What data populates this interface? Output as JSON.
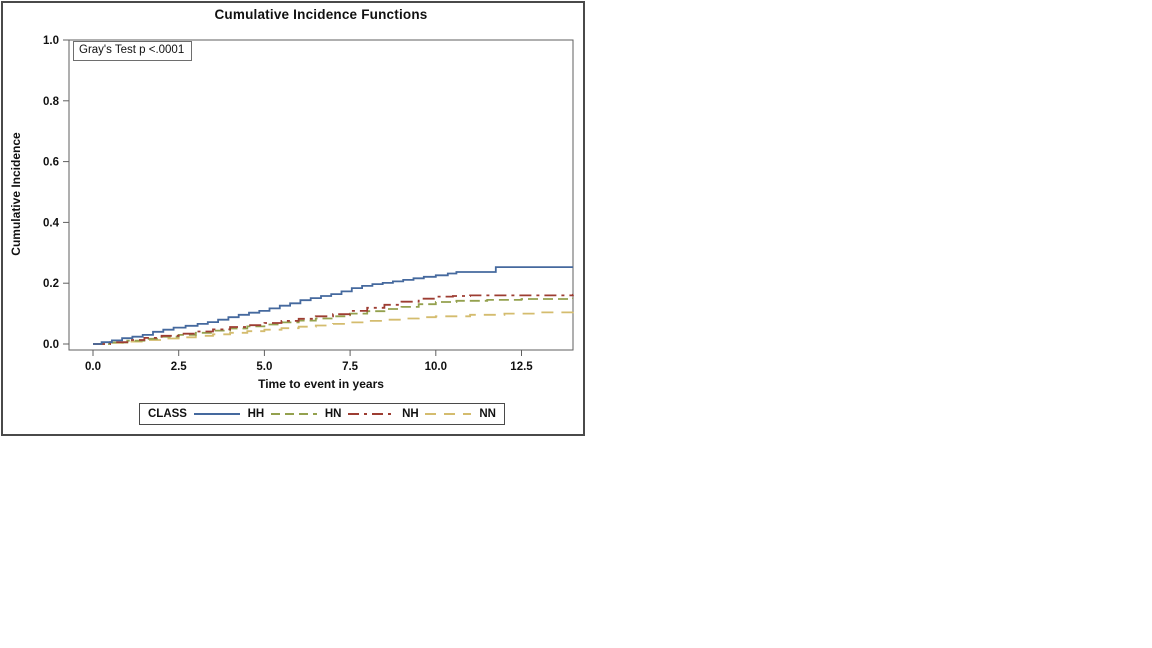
{
  "chart_data": {
    "type": "line",
    "step": true,
    "title": "Cumulative Incidence Functions",
    "xlabel": "Time to event in years",
    "ylabel": "Cumulative Incidence",
    "annotation": "Gray's Test p <.0001",
    "legend_title": "CLASS",
    "legend_position": "bottom",
    "grid": false,
    "xlim": [
      0,
      14
    ],
    "ylim": [
      0,
      1.0
    ],
    "xticks": [
      0.0,
      2.5,
      5.0,
      7.5,
      10.0,
      12.5
    ],
    "yticks": [
      0.0,
      0.2,
      0.4,
      0.6,
      0.8,
      1.0
    ],
    "frame_color": "#5f5f5f",
    "series": [
      {
        "name": "HH",
        "color": "#45699E",
        "dash": "",
        "legend_dash": "",
        "points": [
          [
            0,
            0
          ],
          [
            0.25,
            0.006
          ],
          [
            0.55,
            0.012
          ],
          [
            0.85,
            0.019
          ],
          [
            1.15,
            0.024
          ],
          [
            1.45,
            0.03
          ],
          [
            1.75,
            0.04
          ],
          [
            2.05,
            0.047
          ],
          [
            2.35,
            0.054
          ],
          [
            2.7,
            0.06
          ],
          [
            3.05,
            0.066
          ],
          [
            3.35,
            0.072
          ],
          [
            3.65,
            0.08
          ],
          [
            3.95,
            0.088
          ],
          [
            4.25,
            0.096
          ],
          [
            4.55,
            0.103
          ],
          [
            4.85,
            0.109
          ],
          [
            5.15,
            0.117
          ],
          [
            5.45,
            0.126
          ],
          [
            5.75,
            0.134
          ],
          [
            6.05,
            0.144
          ],
          [
            6.35,
            0.151
          ],
          [
            6.65,
            0.158
          ],
          [
            6.95,
            0.164
          ],
          [
            7.25,
            0.173
          ],
          [
            7.55,
            0.184
          ],
          [
            7.85,
            0.191
          ],
          [
            8.15,
            0.197
          ],
          [
            8.45,
            0.201
          ],
          [
            8.75,
            0.206
          ],
          [
            9.05,
            0.211
          ],
          [
            9.35,
            0.216
          ],
          [
            9.65,
            0.221
          ],
          [
            10.0,
            0.226
          ],
          [
            10.35,
            0.232
          ],
          [
            10.6,
            0.237
          ],
          [
            11.75,
            0.253
          ],
          [
            14.0,
            0.253
          ]
        ]
      },
      {
        "name": "HN",
        "color": "#94A14E",
        "dash": "10 5",
        "legend_dash": "9 5",
        "points": [
          [
            0,
            0
          ],
          [
            0.5,
            0.005
          ],
          [
            1.0,
            0.011
          ],
          [
            1.5,
            0.017
          ],
          [
            2.0,
            0.024
          ],
          [
            2.5,
            0.03
          ],
          [
            3.0,
            0.037
          ],
          [
            3.5,
            0.044
          ],
          [
            4.0,
            0.051
          ],
          [
            4.5,
            0.058
          ],
          [
            5.0,
            0.064
          ],
          [
            5.5,
            0.071
          ],
          [
            6.0,
            0.077
          ],
          [
            6.5,
            0.084
          ],
          [
            7.0,
            0.091
          ],
          [
            7.5,
            0.1
          ],
          [
            8.0,
            0.108
          ],
          [
            8.5,
            0.115
          ],
          [
            9.0,
            0.122
          ],
          [
            9.5,
            0.131
          ],
          [
            10.0,
            0.138
          ],
          [
            10.6,
            0.142
          ],
          [
            11.5,
            0.145
          ],
          [
            12.5,
            0.148
          ],
          [
            14.0,
            0.149
          ]
        ]
      },
      {
        "name": "NH",
        "color": "#9D3D32",
        "dash": "12 5 3 5",
        "legend_dash": "11 5 3 5",
        "points": [
          [
            0,
            0
          ],
          [
            0.5,
            0.006
          ],
          [
            1.0,
            0.013
          ],
          [
            1.5,
            0.02
          ],
          [
            2.0,
            0.027
          ],
          [
            2.5,
            0.034
          ],
          [
            3.0,
            0.041
          ],
          [
            3.5,
            0.048
          ],
          [
            4.0,
            0.056
          ],
          [
            4.5,
            0.062
          ],
          [
            5.0,
            0.069
          ],
          [
            5.5,
            0.076
          ],
          [
            6.0,
            0.083
          ],
          [
            6.5,
            0.091
          ],
          [
            7.0,
            0.098
          ],
          [
            7.5,
            0.109
          ],
          [
            8.0,
            0.119
          ],
          [
            8.5,
            0.129
          ],
          [
            9.0,
            0.139
          ],
          [
            9.5,
            0.149
          ],
          [
            10.0,
            0.156
          ],
          [
            10.5,
            0.158
          ],
          [
            11.0,
            0.16
          ],
          [
            14.0,
            0.162
          ]
        ]
      },
      {
        "name": "NN",
        "color": "#D4BC6E",
        "dash": "12 8",
        "legend_dash": "11 8",
        "points": [
          [
            0,
            0
          ],
          [
            0.5,
            0.004
          ],
          [
            1.0,
            0.008
          ],
          [
            1.5,
            0.013
          ],
          [
            2.0,
            0.018
          ],
          [
            2.5,
            0.022
          ],
          [
            3.0,
            0.027
          ],
          [
            3.5,
            0.032
          ],
          [
            4.0,
            0.037
          ],
          [
            4.5,
            0.042
          ],
          [
            5.0,
            0.047
          ],
          [
            5.5,
            0.052
          ],
          [
            6.0,
            0.057
          ],
          [
            6.5,
            0.061
          ],
          [
            7.0,
            0.066
          ],
          [
            7.5,
            0.071
          ],
          [
            8.0,
            0.076
          ],
          [
            8.5,
            0.08
          ],
          [
            9.0,
            0.084
          ],
          [
            9.5,
            0.088
          ],
          [
            10.0,
            0.091
          ],
          [
            11.0,
            0.096
          ],
          [
            12.0,
            0.1
          ],
          [
            13.0,
            0.104
          ],
          [
            14.0,
            0.106
          ]
        ]
      }
    ]
  }
}
